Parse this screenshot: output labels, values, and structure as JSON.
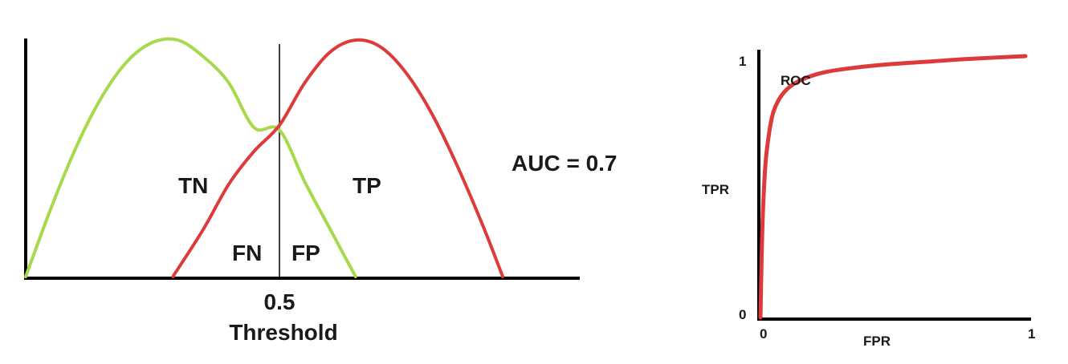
{
  "chart_data": [
    {
      "type": "line",
      "title": "",
      "xlabel": "Threshold",
      "ylabel": "",
      "x_ticks": [
        "0.5"
      ],
      "threshold": 0.5,
      "xlim": [
        0,
        1
      ],
      "ylim": [
        0,
        1
      ],
      "grid": false,
      "series": [
        {
          "role": "negative-class",
          "color": "#a8d94c",
          "x": [
            0.0,
            0.05,
            0.1,
            0.15,
            0.2,
            0.25,
            0.3,
            0.35,
            0.4,
            0.45,
            0.5,
            0.55,
            0.6,
            0.65
          ],
          "y": [
            0.0,
            0.29,
            0.55,
            0.76,
            0.91,
            0.99,
            1.0,
            0.93,
            0.82,
            0.63,
            0.62,
            0.4,
            0.2,
            0.0
          ]
        },
        {
          "role": "positive-class",
          "color": "#dd3a3a",
          "x": [
            0.29,
            0.35,
            0.4,
            0.45,
            0.5,
            0.55,
            0.6,
            0.65,
            0.7,
            0.75,
            0.8,
            0.85,
            0.9,
            0.94
          ],
          "y": [
            0.0,
            0.2,
            0.39,
            0.53,
            0.64,
            0.82,
            0.95,
            1.0,
            0.97,
            0.86,
            0.69,
            0.47,
            0.22,
            0.0
          ]
        }
      ],
      "annotations": {
        "tn": "TN",
        "tp": "TP",
        "fn": "FN",
        "fp": "FP",
        "auc": "AUC = 0.7"
      }
    },
    {
      "type": "line",
      "title": "",
      "xlabel": "FPR",
      "ylabel": "TPR",
      "x_ticks": [
        "0",
        "1"
      ],
      "y_ticks": [
        "0",
        "1"
      ],
      "xlim": [
        0,
        1
      ],
      "ylim": [
        0,
        1
      ],
      "grid": false,
      "series": [
        {
          "name": "ROC",
          "color": "#dd3a3a",
          "x": [
            0.0,
            0.005,
            0.01,
            0.02,
            0.035,
            0.05,
            0.08,
            0.12,
            0.18,
            0.25,
            0.35,
            0.5,
            0.65,
            0.8,
            1.0
          ],
          "y": [
            0.0,
            0.25,
            0.42,
            0.6,
            0.72,
            0.79,
            0.85,
            0.89,
            0.92,
            0.94,
            0.955,
            0.97,
            0.98,
            0.99,
            1.0
          ]
        }
      ]
    }
  ]
}
